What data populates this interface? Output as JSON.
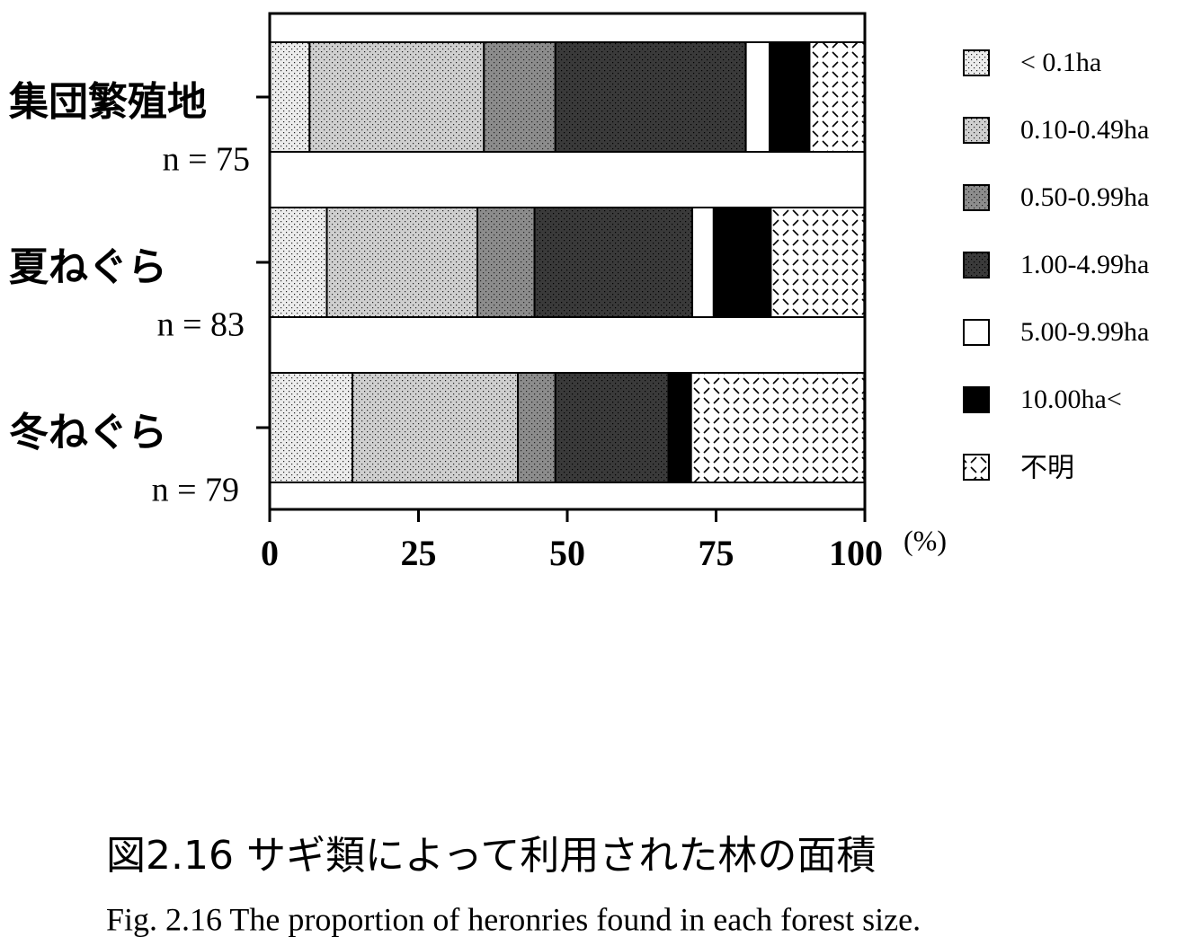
{
  "chart_data": {
    "type": "stacked-barh",
    "categories": [
      "集団繁殖地",
      "夏ねぐら",
      "冬ねぐら"
    ],
    "category_notes": [
      "n = 75",
      "n = 83",
      "n = 79"
    ],
    "series": [
      {
        "name": "< 0.1ha",
        "color": "#ececec",
        "pattern": "dots",
        "values": [
          6.7,
          9.6,
          13.9
        ]
      },
      {
        "name": "0.10-0.49ha",
        "color": "#cfcfcf",
        "pattern": "dots",
        "values": [
          29.3,
          25.3,
          27.8
        ]
      },
      {
        "name": "0.50-0.99ha",
        "color": "#8c8c8c",
        "pattern": "dots",
        "values": [
          12.0,
          9.6,
          6.3
        ]
      },
      {
        "name": "1.00-4.99ha",
        "color": "#3a3a3a",
        "pattern": "dots",
        "values": [
          32.0,
          26.5,
          19.0
        ]
      },
      {
        "name": "5.00-9.99ha",
        "color": "#ffffff",
        "pattern": "none",
        "values": [
          4.0,
          3.6,
          0
        ]
      },
      {
        "name": "10.00ha<",
        "color": "#000000",
        "pattern": "none",
        "values": [
          6.7,
          9.6,
          3.8
        ]
      },
      {
        "name": "不明",
        "color": "#ffffff",
        "pattern": "dashes",
        "values": [
          9.3,
          15.7,
          29.1
        ]
      }
    ],
    "xlim": [
      0,
      100
    ],
    "xticks": [
      0,
      25,
      50,
      75,
      100
    ],
    "xlabel": "(%)",
    "legend": "right",
    "caption": "図2.16 サギ類によって利用された林の面積",
    "caption_en": "Fig. 2.16  The proportion of heronries found in each forest size."
  }
}
